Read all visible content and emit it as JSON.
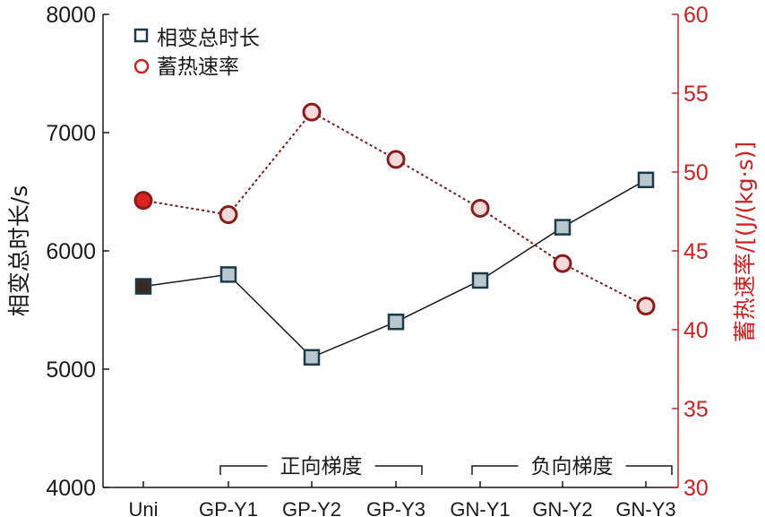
{
  "chart_data": {
    "type": "line",
    "categories": [
      "Uni",
      "GP-Y1",
      "GP-Y2",
      "GP-Y3",
      "GN-Y1",
      "GN-Y2",
      "GN-Y3"
    ],
    "series": [
      {
        "name": "相变总时长",
        "axis": "left",
        "values": [
          5700,
          5800,
          5100,
          5400,
          5750,
          6200,
          6600
        ],
        "color": "#1c3a4a",
        "marker": "square",
        "line": "solid"
      },
      {
        "name": "蓄热速率",
        "axis": "right",
        "values": [
          48.2,
          47.3,
          53.8,
          50.8,
          47.7,
          44.2,
          41.5
        ],
        "color": "#cc2222",
        "marker": "circle",
        "line": "dotted"
      }
    ],
    "ylabel": "相变总时长/s",
    "ylim": [
      4000,
      8000
    ],
    "yticks": [
      "4000",
      "5000",
      "6000",
      "7000",
      "8000"
    ],
    "y2label": "蓄热速率/[(J/(kg·s)]",
    "y2lim": [
      30,
      60
    ],
    "y2ticks": [
      "30",
      "35",
      "40",
      "45",
      "50",
      "55",
      "60"
    ],
    "legend_position": "top-left",
    "grid": false,
    "groups": [
      {
        "label": "正向梯度",
        "from": 1,
        "to": 3
      },
      {
        "label": "负向梯度",
        "from": 4,
        "to": 6
      }
    ],
    "colors": {
      "left_axis": "#1a1a1a",
      "right_axis": "#cc2222",
      "series1_fill_special": "#3a2a22",
      "series2_fill_special": "#dd2222"
    }
  }
}
